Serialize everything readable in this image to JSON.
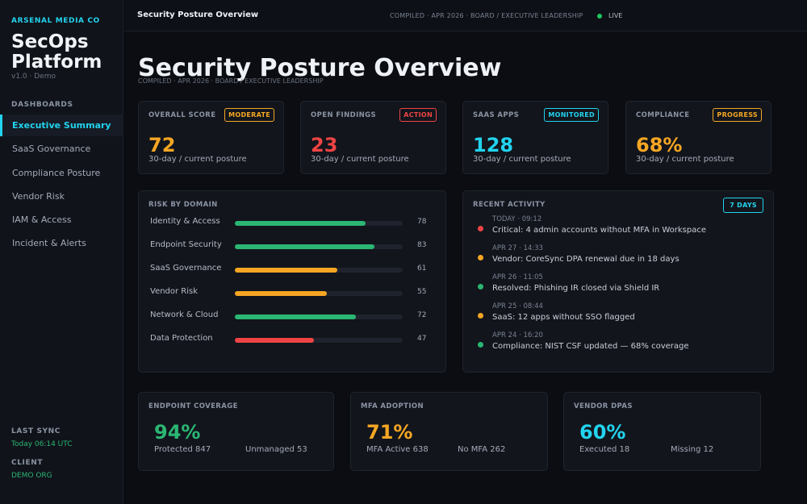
{
  "sidebar": {
    "org": "ARSENAL MEDIA CO",
    "app_name": "SecOps Platform",
    "version": "v1.0 · Demo",
    "section_label": "DASHBOARDS",
    "items": [
      {
        "label": "Executive Summary",
        "active": true
      },
      {
        "label": "SaaS Governance"
      },
      {
        "label": "Compliance Posture"
      },
      {
        "label": "Vendor Risk"
      },
      {
        "label": "IAM & Access"
      },
      {
        "label": "Incident & Alerts"
      }
    ],
    "last_sync_label": "LAST SYNC",
    "last_sync_value": "Today 06:14 UTC",
    "client_label": "CLIENT",
    "client_value": "DEMO ORG"
  },
  "topbar": {
    "title": "Security Posture Overview",
    "meta": "COMPILED · APR 2026 · BOARD / EXECUTIVE LEADERSHIP",
    "status": "LIVE"
  },
  "page": {
    "title": "Security Posture Overview",
    "subtitle": "COMPILED · APR 2026 · BOARD / EXECUTIVE LEADERSHIP"
  },
  "kpis": [
    {
      "label": "OVERALL SCORE",
      "badge": "MODERATE",
      "value": "72",
      "sub": "30-day / current posture",
      "color": "#f5a623"
    },
    {
      "label": "OPEN FINDINGS",
      "badge": "ACTION",
      "value": "23",
      "sub": "30-day / current posture",
      "color": "#ef4444"
    },
    {
      "label": "SAAS APPS",
      "badge": "MONITORED",
      "value": "128",
      "sub": "30-day / current posture",
      "color": "#22d3ee"
    },
    {
      "label": "COMPLIANCE",
      "badge": "PROGRESS",
      "value": "68%",
      "sub": "30-day / current posture",
      "color": "#f5a623"
    }
  ],
  "risk": {
    "title": "RISK BY DOMAIN",
    "rows": [
      {
        "name": "Identity & Access",
        "value": 78,
        "color": "#2bb673"
      },
      {
        "name": "Endpoint Security",
        "value": 83,
        "color": "#2bb673"
      },
      {
        "name": "SaaS Governance",
        "value": 61,
        "color": "#f5a623"
      },
      {
        "name": "Vendor Risk",
        "value": 55,
        "color": "#f5a623"
      },
      {
        "name": "Network & Cloud",
        "value": 72,
        "color": "#2bb673"
      },
      {
        "name": "Data Protection",
        "value": 47,
        "color": "#ef4444"
      }
    ]
  },
  "activity": {
    "title": "RECENT ACTIVITY",
    "badge": "7 DAYS",
    "items": [
      {
        "time": "TODAY · 09:12",
        "text": "Critical: 4 admin accounts without MFA in Workspace",
        "color": "#ef4444"
      },
      {
        "time": "APR 27 · 14:33",
        "text": "Vendor: CoreSync DPA renewal due in 18 days",
        "color": "#f5a623"
      },
      {
        "time": "APR 26 · 11:05",
        "text": "Resolved: Phishing IR closed via Shield IR",
        "color": "#2bb673"
      },
      {
        "time": "APR 25 · 08:44",
        "text": "SaaS: 12 apps without SSO flagged",
        "color": "#f5a623"
      },
      {
        "time": "APR 24 · 16:20",
        "text": "Compliance: NIST CSF updated — 68% coverage",
        "color": "#2bb673"
      }
    ]
  },
  "endpoint": {
    "label": "ENDPOINT COVERAGE",
    "value": "94%",
    "a": "Protected 847",
    "b": "Unmanaged 53"
  },
  "mfa": {
    "label": "MFA ADOPTION",
    "value": "71%",
    "a": "MFA Active 638",
    "b": "No MFA 262"
  },
  "vendor": {
    "label": "VENDOR DPAS",
    "value": "60%",
    "a": "Executed 18",
    "b": "Missing 12"
  }
}
